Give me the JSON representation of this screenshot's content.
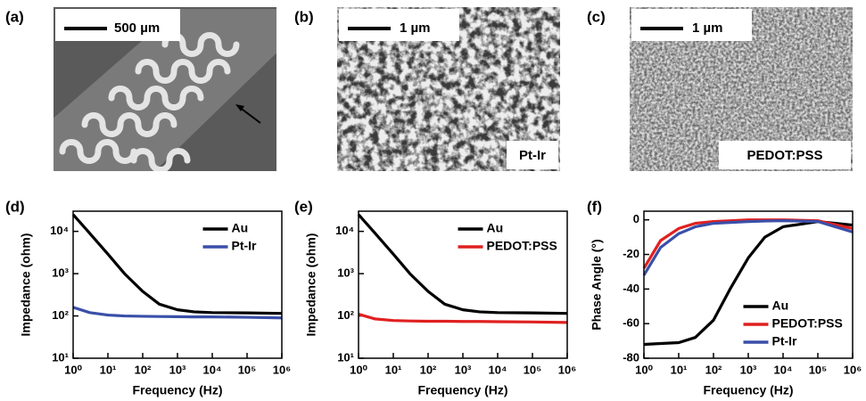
{
  "images": [
    {
      "label": "(a)",
      "scale_bar": "500 µm"
    },
    {
      "label": "(b)",
      "scale_bar": "1 µm",
      "caption": "Pt-Ir"
    },
    {
      "label": "(c)",
      "scale_bar": "1 µm",
      "caption": "PEDOT:PSS"
    }
  ],
  "chart_data": [
    {
      "type": "line",
      "panel_label": "(d)",
      "xlabel": "Frequency (Hz)",
      "ylabel": "Impedance (ohm)",
      "xscale": "log",
      "yscale": "log",
      "xlim": [
        1,
        1000000
      ],
      "ylim": [
        10,
        30000
      ],
      "xticks": [
        {
          "value": 1,
          "label": "10⁰"
        },
        {
          "value": 10,
          "label": "10¹"
        },
        {
          "value": 100,
          "label": "10²"
        },
        {
          "value": 1000,
          "label": "10³"
        },
        {
          "value": 10000,
          "label": "10⁴"
        },
        {
          "value": 100000,
          "label": "10⁵"
        },
        {
          "value": 1000000,
          "label": "10⁶"
        }
      ],
      "yticks": [
        {
          "value": 10,
          "label": "10¹"
        },
        {
          "value": 100,
          "label": "10²"
        },
        {
          "value": 1000,
          "label": "10³"
        },
        {
          "value": 10000,
          "label": "10⁴"
        }
      ],
      "legend": "upper right",
      "x": [
        1,
        3,
        10,
        30,
        100,
        300,
        1000,
        3000,
        10000,
        100000,
        1000000
      ],
      "series": [
        {
          "name": "Au",
          "color": "#000000",
          "values": [
            25000,
            9000,
            2900,
            1000,
            380,
            190,
            140,
            125,
            120,
            118,
            115
          ]
        },
        {
          "name": "Pt-Ir",
          "color": "#3a4fa8",
          "values": [
            160,
            120,
            105,
            100,
            98,
            97,
            96,
            95,
            95,
            93,
            90
          ]
        }
      ]
    },
    {
      "type": "line",
      "panel_label": "(e)",
      "xlabel": "Frequency (Hz)",
      "ylabel": "Impedance (ohm)",
      "xscale": "log",
      "yscale": "log",
      "xlim": [
        1,
        1000000
      ],
      "ylim": [
        10,
        30000
      ],
      "xticks": [
        {
          "value": 1,
          "label": "10⁰"
        },
        {
          "value": 10,
          "label": "10¹"
        },
        {
          "value": 100,
          "label": "10²"
        },
        {
          "value": 1000,
          "label": "10³"
        },
        {
          "value": 10000,
          "label": "10⁴"
        },
        {
          "value": 100000,
          "label": "10⁵"
        },
        {
          "value": 1000000,
          "label": "10⁶"
        }
      ],
      "yticks": [
        {
          "value": 10,
          "label": "10¹"
        },
        {
          "value": 100,
          "label": "10²"
        },
        {
          "value": 1000,
          "label": "10³"
        },
        {
          "value": 10000,
          "label": "10⁴"
        }
      ],
      "legend": "upper right",
      "x": [
        1,
        3,
        10,
        30,
        100,
        300,
        1000,
        3000,
        10000,
        100000,
        1000000
      ],
      "series": [
        {
          "name": "Au",
          "color": "#000000",
          "values": [
            25000,
            9000,
            2900,
            1000,
            380,
            190,
            140,
            125,
            120,
            118,
            115
          ]
        },
        {
          "name": "PEDOT:PSS",
          "color": "#e02020",
          "values": [
            110,
            85,
            78,
            76,
            75,
            75,
            74,
            74,
            73,
            72,
            70
          ]
        }
      ]
    },
    {
      "type": "line",
      "panel_label": "(f)",
      "xlabel": "Frequency (Hz)",
      "ylabel": "Phase Angle (°)",
      "xscale": "log",
      "yscale": "linear",
      "xlim": [
        1,
        1000000
      ],
      "ylim": [
        -80,
        5
      ],
      "xticks": [
        {
          "value": 1,
          "label": "10⁰"
        },
        {
          "value": 10,
          "label": "10¹"
        },
        {
          "value": 100,
          "label": "10²"
        },
        {
          "value": 1000,
          "label": "10³"
        },
        {
          "value": 10000,
          "label": "10⁴"
        },
        {
          "value": 100000,
          "label": "10⁵"
        },
        {
          "value": 1000000,
          "label": "10⁶"
        }
      ],
      "yticks": [
        -80,
        -60,
        -40,
        -20,
        0
      ],
      "legend": "lower right",
      "x": [
        1,
        3,
        10,
        30,
        100,
        300,
        1000,
        3000,
        10000,
        100000,
        1000000
      ],
      "series": [
        {
          "name": "Au",
          "color": "#000000",
          "values": [
            -72,
            -71.5,
            -71,
            -68,
            -58,
            -40,
            -22,
            -10,
            -4,
            -1,
            -3
          ]
        },
        {
          "name": "PEDOT:PSS",
          "color": "#e02020",
          "values": [
            -28,
            -12,
            -5,
            -2,
            -1,
            -0.5,
            0,
            0,
            0,
            -0.5,
            -5
          ]
        },
        {
          "name": "Pt-Ir",
          "color": "#3a4fa8",
          "values": [
            -32,
            -16,
            -8,
            -4,
            -2,
            -1.5,
            -1,
            -0.7,
            -0.5,
            -1,
            -7
          ]
        }
      ]
    }
  ]
}
